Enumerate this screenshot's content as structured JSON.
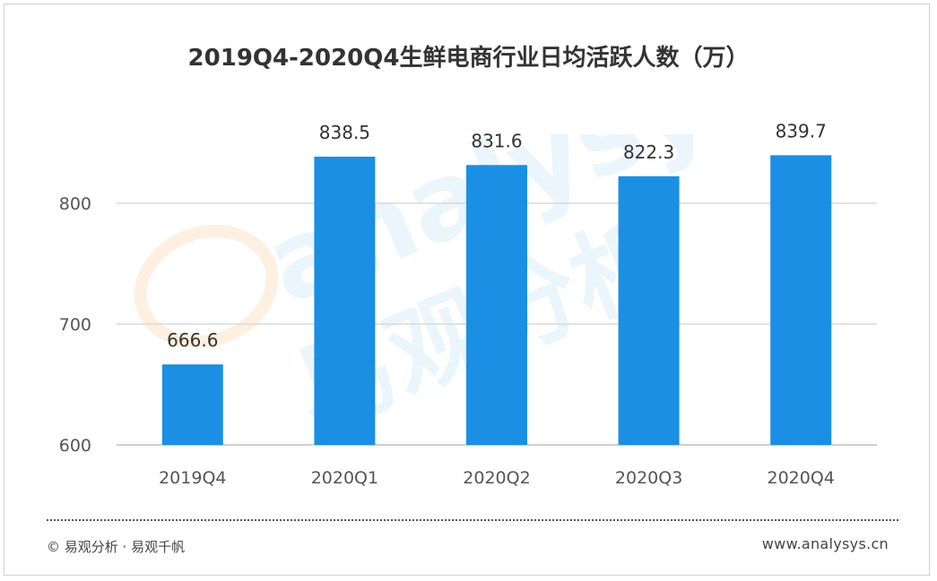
{
  "chart_data": {
    "type": "bar",
    "title": "2019Q4-2020Q4生鲜电商行业日均活跃人数（万）",
    "categories": [
      "2019Q4",
      "2020Q1",
      "2020Q2",
      "2020Q3",
      "2020Q4"
    ],
    "values": [
      666.6,
      838.5,
      831.6,
      822.3,
      839.7
    ],
    "value_labels": [
      "666.6",
      "838.5",
      "831.6",
      "822.3",
      "839.7"
    ],
    "ylim": [
      600,
      900
    ],
    "yticks": [
      600,
      700,
      800
    ],
    "ytick_labels": [
      "600",
      "700",
      "800"
    ],
    "grid": true,
    "bar_color": "#1a8fe3",
    "xlabel": "",
    "ylabel": ""
  },
  "footer": {
    "copyright": "© 易观分析 · 易观千帆",
    "website": "www.analysys.cn"
  },
  "watermark": {
    "text_latin": "analysys",
    "text_cn": "易观分析"
  }
}
